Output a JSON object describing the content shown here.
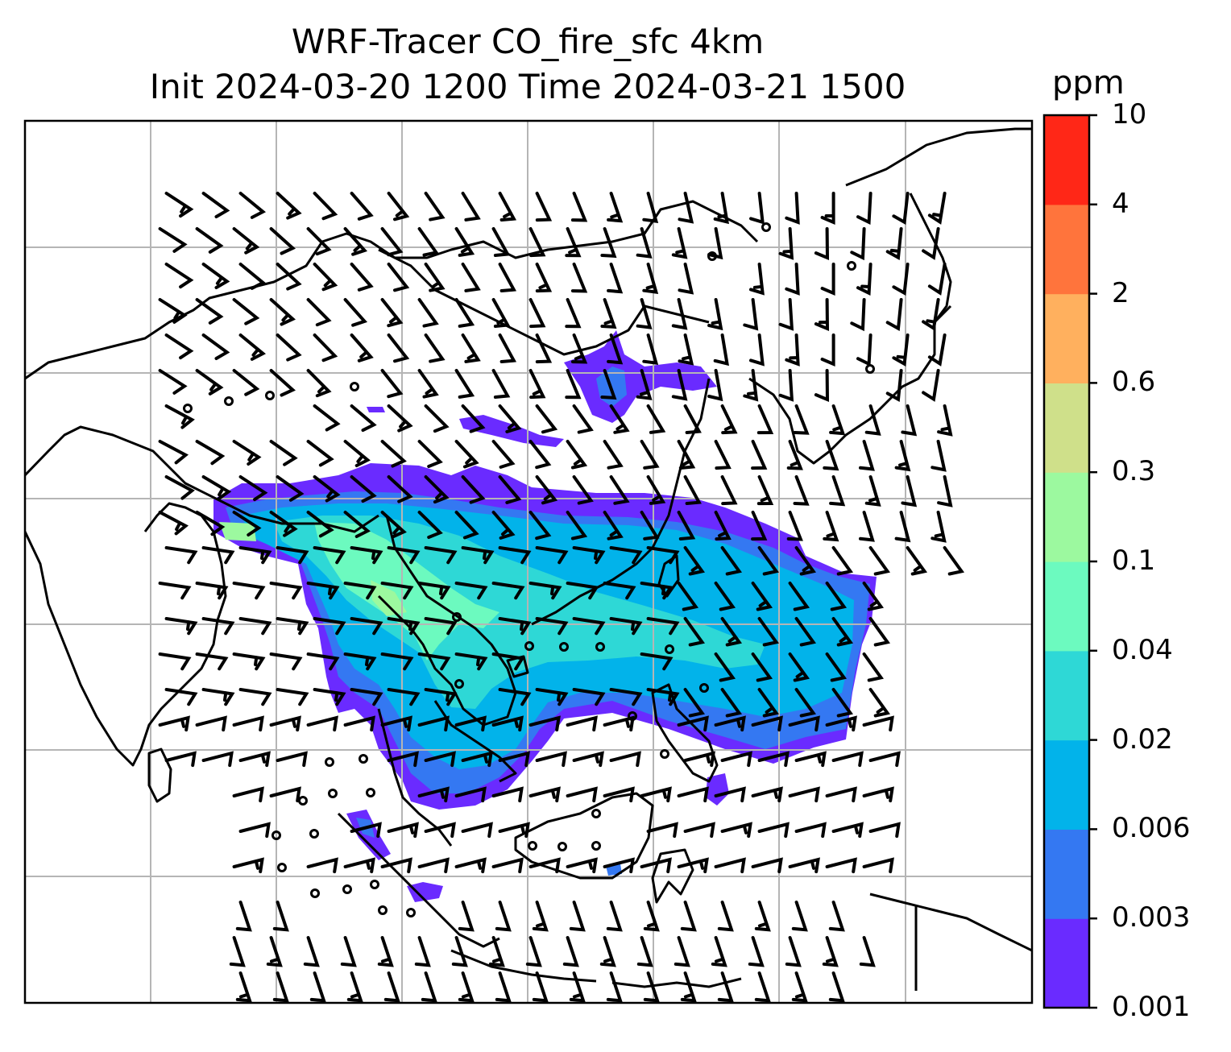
{
  "title": {
    "line1": "WRF-Tracer CO_fire_sfc 4km",
    "line2": "Init 2024-03-20 1200 Time 2024-03-21 1500"
  },
  "colorbar": {
    "unit": "ppm",
    "levels": [
      "0.001",
      "0.003",
      "0.006",
      "0.02",
      "0.04",
      "0.1",
      "0.3",
      "0.6",
      "2",
      "4",
      "10"
    ],
    "colors": [
      "#6a2bff",
      "#3478f2",
      "#02b3ea",
      "#2ed8d6",
      "#6cfabf",
      "#9cf99f",
      "#cfe08a",
      "#ffb05e",
      "#ff743c",
      "#ff2717"
    ]
  },
  "map": {
    "gridlines": true,
    "plume_levels": [
      "0.001",
      "0.003",
      "0.006",
      "0.02",
      "0.04",
      "0.1"
    ]
  }
}
